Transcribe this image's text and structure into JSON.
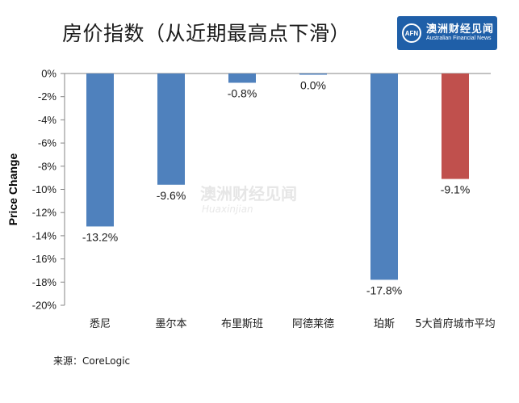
{
  "page": {
    "title": "房价指数（从近期最高点下滑）",
    "source": "来源：CoreLogic"
  },
  "logo": {
    "badge": "AFN",
    "name_cn": "澳洲财经见闻",
    "name_en": "Australian Financial News"
  },
  "watermark": {
    "cn": "澳洲财经见闻",
    "en": "Huaxinjian"
  },
  "colors": {
    "primary_bar": "#4f81bd",
    "highlight_bar": "#c0504d",
    "axis": "#868686",
    "text": "#1a1a1a"
  },
  "chart_data": {
    "type": "bar",
    "title": "房价指数（从近期最高点下滑）",
    "ylabel": "Price Change",
    "xlabel": "",
    "ylim": [
      -20,
      0
    ],
    "y_ticks": [
      0,
      -2,
      -4,
      -6,
      -8,
      -10,
      -12,
      -14,
      -16,
      -18,
      -20
    ],
    "y_tick_labels": [
      "0%",
      "-2%",
      "-4%",
      "-6%",
      "-8%",
      "-10%",
      "-12%",
      "-14%",
      "-16%",
      "-18%",
      "-20%"
    ],
    "categories": [
      "悉尼",
      "墨尔本",
      "布里斯班",
      "阿德莱德",
      "珀斯",
      "5大首府城市平均"
    ],
    "values": [
      -13.2,
      -9.6,
      -0.8,
      0.0,
      -17.8,
      -9.1
    ],
    "data_labels": [
      "-13.2%",
      "-9.6%",
      "-0.8%",
      "0.0%",
      "-17.8%",
      "-9.1%"
    ],
    "highlight_index": 5,
    "grid": false,
    "legend": "none"
  }
}
